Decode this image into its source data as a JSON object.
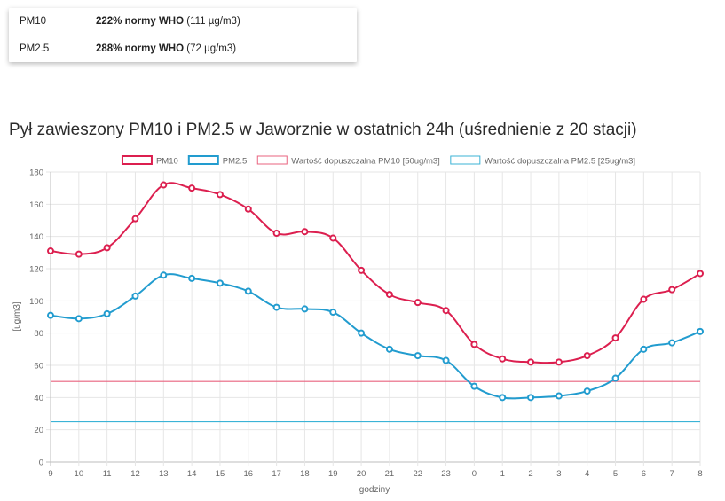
{
  "summary": {
    "rows": [
      {
        "name": "PM10",
        "bold": "222% normy WHO",
        "rest": " (111 µg/m3)"
      },
      {
        "name": "PM2.5",
        "bold": "288% normy WHO",
        "rest": " (72 µg/m3)"
      }
    ]
  },
  "chart_title": "Pył zawieszony PM10 i PM2.5 w Jaworznie w ostatnich 24h (uśrednienie z 20 stacji)",
  "chart_data": {
    "type": "line",
    "xlabel": "godziny",
    "ylabel": "[ug/m3]",
    "ylim": [
      0,
      180
    ],
    "yticks": [
      0,
      20,
      40,
      60,
      80,
      100,
      120,
      140,
      160,
      180
    ],
    "categories": [
      "9",
      "10",
      "11",
      "12",
      "13",
      "14",
      "15",
      "16",
      "17",
      "18",
      "19",
      "20",
      "21",
      "22",
      "23",
      "0",
      "1",
      "2",
      "3",
      "4",
      "5",
      "6",
      "7",
      "8"
    ],
    "grid": true,
    "legend_position": "top",
    "series": [
      {
        "name": "PM10",
        "kind": "line",
        "color": "#dc1f4f",
        "values": [
          131,
          129,
          133,
          151,
          172,
          170,
          166,
          157,
          142,
          143,
          139,
          119,
          104,
          99,
          94,
          73,
          64,
          62,
          62,
          66,
          77,
          101,
          107,
          117
        ]
      },
      {
        "name": "PM2.5",
        "kind": "line",
        "color": "#229ccf",
        "values": [
          91,
          89,
          92,
          103,
          116,
          114,
          111,
          106,
          96,
          95,
          93,
          80,
          70,
          66,
          63,
          47,
          40,
          40,
          41,
          44,
          52,
          70,
          74,
          81
        ]
      },
      {
        "name": "Wartość dopuszczalna PM10 [50ug/m3]",
        "kind": "threshold",
        "color": "#e9637f",
        "value": 50
      },
      {
        "name": "Wartość dopuszczalna PM2.5 [25ug/m3]",
        "kind": "threshold",
        "color": "#3bb3d6",
        "value": 25
      }
    ]
  }
}
